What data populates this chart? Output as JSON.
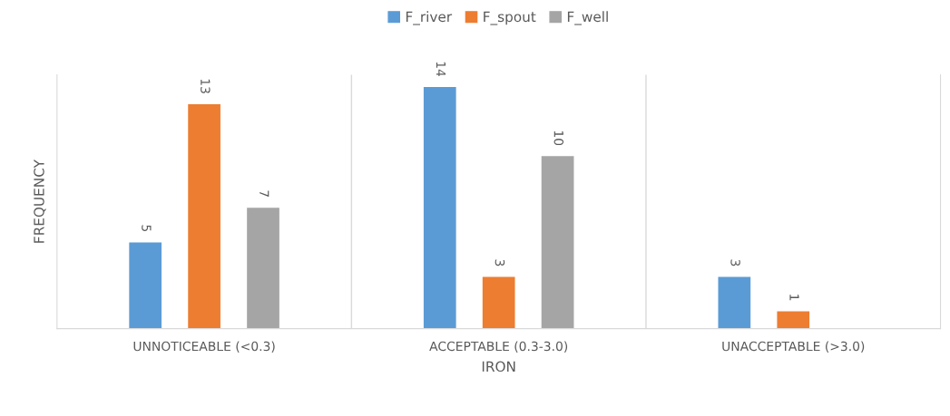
{
  "chart_data": {
    "type": "bar",
    "xlabel": "IRON",
    "ylabel": "FREQUENCY",
    "categories": [
      "UNNOTICEABLE (<0.3)",
      "ACCEPTABLE (0.3-3.0)",
      "UNACCEPTABLE (>3.0)"
    ],
    "series": [
      {
        "name": "F_river",
        "color": "#5b9bd5",
        "values": [
          5,
          14,
          3
        ]
      },
      {
        "name": "F_spout",
        "color": "#ed7d31",
        "values": [
          13,
          3,
          1
        ]
      },
      {
        "name": "F_well",
        "color": "#a5a5a5",
        "values": [
          7,
          10,
          null
        ]
      }
    ],
    "data_labels": true,
    "grid": "x",
    "legend": "top"
  }
}
